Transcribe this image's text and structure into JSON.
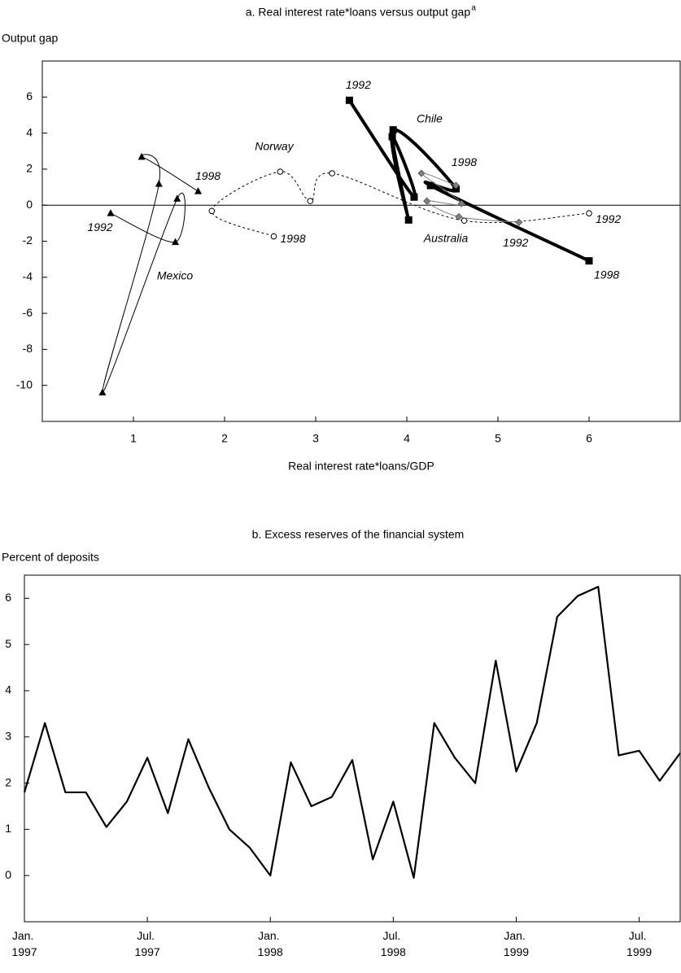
{
  "chart_data": [
    {
      "type": "connected-scatter",
      "title": "a. Real interest rate*loans versus output gap",
      "title_note": "a",
      "y_label": "Output gap",
      "x_label": "Real interest rate*loans/GDP",
      "xlim": [
        0,
        7
      ],
      "xticks": [
        1,
        2,
        3,
        4,
        5,
        6
      ],
      "ylim": [
        -12,
        8
      ],
      "yticks": [
        -10,
        -8,
        -6,
        -4,
        -2,
        0,
        2,
        4,
        6
      ],
      "zero_line": true,
      "smooth": true,
      "series": [
        {
          "name": "Mexico",
          "color": "#000000",
          "marker": "triangle",
          "dashed": false,
          "line_width": 1,
          "x": [
            0.75,
            1.46,
            1.48,
            0.66,
            1.28,
            1.09,
            1.71
          ],
          "values": [
            -0.45,
            -2.05,
            0.36,
            -10.4,
            1.18,
            2.68,
            0.77
          ],
          "point_labels": [
            "1992",
            null,
            null,
            null,
            null,
            null,
            "1998"
          ]
        },
        {
          "name": "Norway",
          "color": "#000000",
          "marker": "circle",
          "dashed": true,
          "line_width": 1,
          "x": [
            6.0,
            4.63,
            3.18,
            2.94,
            2.61,
            1.86,
            2.54
          ],
          "values": [
            -0.45,
            -0.86,
            1.77,
            0.23,
            1.86,
            -0.32,
            -1.73
          ],
          "point_labels": [
            "1992",
            null,
            null,
            null,
            null,
            null,
            "1998"
          ]
        },
        {
          "name": "Chile",
          "color": "#000000",
          "marker": "square",
          "dashed": false,
          "line_width": 4,
          "x": [
            3.37,
            4.08,
            3.84,
            4.02,
            3.85,
            4.54,
            4.26,
            6.0
          ],
          "values": [
            5.82,
            0.45,
            3.8,
            -0.82,
            4.18,
            0.91,
            1.09,
            -3.09
          ],
          "point_labels": [
            "1992",
            null,
            null,
            null,
            null,
            null,
            null,
            "1998"
          ]
        },
        {
          "name": "Australia",
          "color": "#808080",
          "marker": "diamond",
          "dashed": false,
          "line_width": 1,
          "x": [
            5.23,
            4.57,
            4.22,
            4.6,
            4.16,
            4.54
          ],
          "values": [
            -0.95,
            -0.64,
            0.23,
            0.09,
            1.77,
            1.09
          ],
          "point_labels": [
            "1992",
            null,
            null,
            null,
            null,
            "1998"
          ]
        }
      ]
    },
    {
      "type": "line",
      "title": "b. Excess reserves of the financial system",
      "y_label": "Percent of deposits",
      "categories": [
        "Jan. 1997",
        null,
        null,
        null,
        null,
        null,
        "Jul. 1997",
        null,
        null,
        null,
        null,
        null,
        "Jan. 1998",
        null,
        null,
        null,
        null,
        null,
        "Jul. 1998",
        null,
        null,
        null,
        null,
        null,
        "Jan. 1999",
        null,
        null,
        null,
        null,
        null,
        "Jul. 1999",
        null,
        null
      ],
      "values": [
        1.8,
        3.3,
        1.8,
        1.8,
        1.05,
        1.6,
        2.55,
        1.35,
        2.95,
        1.9,
        1.0,
        0.6,
        0.0,
        2.45,
        1.5,
        1.7,
        2.5,
        0.35,
        1.6,
        -0.05,
        3.3,
        2.55,
        2.0,
        4.65,
        2.25,
        3.3,
        5.6,
        6.05,
        6.25,
        2.6,
        2.7,
        2.05,
        2.65
      ],
      "color": "#000000",
      "ylim": [
        -1,
        6.5
      ],
      "yticks": [
        0,
        1,
        2,
        3,
        4,
        5,
        6
      ]
    }
  ]
}
